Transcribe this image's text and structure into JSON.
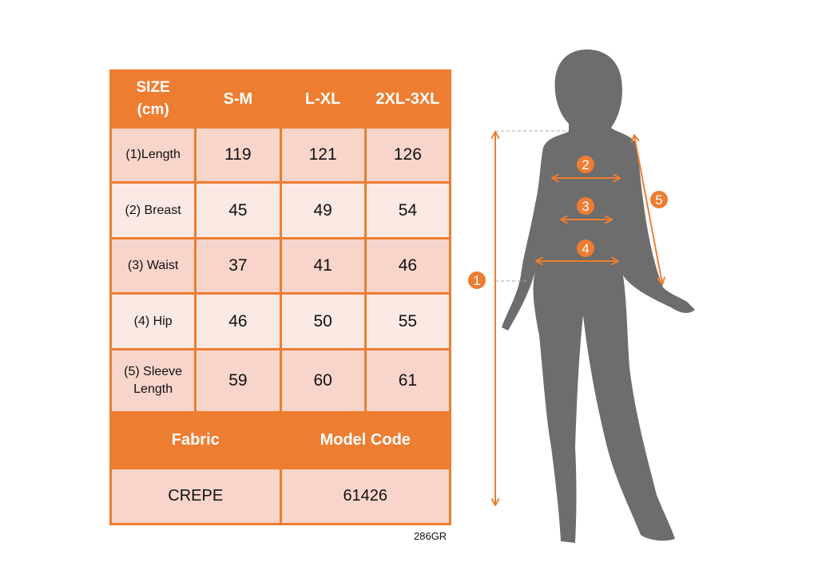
{
  "colors": {
    "accent": "#ed7d31",
    "row_dark": "#f8d5cb",
    "row_light": "#fbe9e4",
    "silhouette": "#6d6d6d"
  },
  "table": {
    "header_line1": "SIZE",
    "header_line2": "(cm)",
    "columns": [
      "S-M",
      "L-XL",
      "2XL-3XL"
    ],
    "rows": [
      {
        "label": "(1)Length",
        "values": [
          "119",
          "121",
          "126"
        ]
      },
      {
        "label": "(2) Breast",
        "values": [
          "45",
          "49",
          "54"
        ]
      },
      {
        "label": "(3) Waist",
        "values": [
          "37",
          "41",
          "46"
        ]
      },
      {
        "label": "(4) Hip",
        "values": [
          "46",
          "50",
          "55"
        ]
      },
      {
        "label": "(5) Sleeve Length",
        "values": [
          "59",
          "60",
          "61"
        ]
      }
    ],
    "footer_headers": [
      "Fabric",
      "Model Code"
    ],
    "footer_values": [
      "CREPE",
      "61426"
    ]
  },
  "product_code": "286GR",
  "figure": {
    "markers": [
      "1",
      "2",
      "3",
      "4",
      "5"
    ]
  }
}
